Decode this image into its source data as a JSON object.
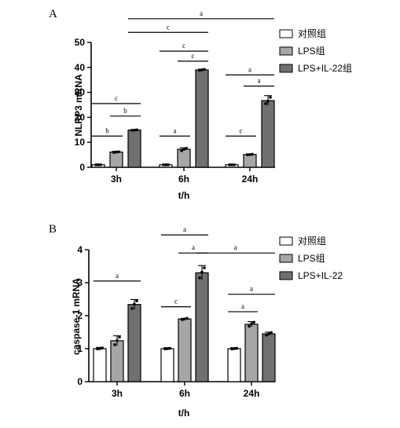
{
  "colors": {
    "control": "#ffffff",
    "lps": "#a6a6a6",
    "lps_il22": "#707070",
    "axis": "#000000"
  },
  "chart_data": [
    {
      "panel_label": "A",
      "type": "bar",
      "categories": [
        "3h",
        "6h",
        "24h"
      ],
      "xlabel": "t/h",
      "ylabel": "NLRP3 mRNA",
      "ylim": [
        0,
        50
      ],
      "yticks": [
        0,
        10,
        20,
        30,
        40,
        50
      ],
      "grid": false,
      "legend": "top-right",
      "series": [
        {
          "name": "对照组",
          "values": [
            1.0,
            1.0,
            1.0
          ],
          "errors": [
            0.1,
            0.1,
            0.1
          ],
          "points": [
            [
              1.0,
              1.0,
              1.0
            ],
            [
              1.0,
              1.0,
              1.0
            ],
            [
              1.0,
              1.0,
              1.0
            ]
          ]
        },
        {
          "name": "LPS组",
          "values": [
            6.1,
            7.2,
            5.1
          ],
          "errors": [
            0.3,
            0.6,
            0.2
          ],
          "points": [
            [
              5.9,
              6.1,
              6.2
            ],
            [
              6.6,
              7.2,
              7.6
            ],
            [
              5.0,
              5.1,
              5.2
            ]
          ]
        },
        {
          "name": "LPS+IL-22组",
          "values": [
            14.9,
            39.0,
            26.7
          ],
          "errors": [
            0.2,
            0.3,
            2.0
          ],
          "points": [
            [
              14.8,
              14.9,
              15.0
            ],
            [
              38.8,
              39.0,
              39.2
            ],
            [
              25.5,
              26.5,
              28.0
            ]
          ]
        }
      ],
      "significance": [
        {
          "label": "b",
          "cat_from": 0,
          "ser_from": 0,
          "cat_to": 0,
          "ser_to": 1,
          "y": 12.5
        },
        {
          "label": "b",
          "cat_from": 0,
          "ser_from": 1,
          "cat_to": 0,
          "ser_to": 2,
          "y": 20.5
        },
        {
          "label": "c",
          "cat_from": 0,
          "ser_from": 0,
          "cat_to": 0,
          "ser_to": 2,
          "y": 25.5
        },
        {
          "label": "a",
          "cat_from": 1,
          "ser_from": 0,
          "cat_to": 1,
          "ser_to": 1,
          "y": 12.5
        },
        {
          "label": "c",
          "cat_from": 1,
          "ser_from": 1,
          "cat_to": 1,
          "ser_to": 2,
          "y": 42.5
        },
        {
          "label": "c",
          "cat_from": 1,
          "ser_from": 0,
          "cat_to": 1,
          "ser_to": 2,
          "y": 46.5
        },
        {
          "label": "c",
          "cat_from": 0,
          "ser_from": 2,
          "cat_to": 1,
          "ser_to": 2,
          "y": 54.0
        },
        {
          "label": "a",
          "cat_from": 0,
          "ser_from": 2,
          "cat_to": 2,
          "ser_to": 2,
          "y": 59.5
        },
        {
          "label": "c",
          "cat_from": 2,
          "ser_from": 0,
          "cat_to": 2,
          "ser_to": 1,
          "y": 12.5
        },
        {
          "label": "a",
          "cat_from": 2,
          "ser_from": 1,
          "cat_to": 2,
          "ser_to": 2,
          "y": 32.5
        },
        {
          "label": "a",
          "cat_from": 2,
          "ser_from": 0,
          "cat_to": 2,
          "ser_to": 2,
          "y": 37.0
        }
      ]
    },
    {
      "panel_label": "B",
      "type": "bar",
      "categories": [
        "3h",
        "6h",
        "24h"
      ],
      "xlabel": "t/h",
      "ylabel": "caspase-1 mRNA",
      "ylim": [
        0,
        4
      ],
      "yticks": [
        0,
        1,
        2,
        3,
        4
      ],
      "grid": false,
      "legend": "top-right",
      "series": [
        {
          "name": "对照组",
          "values": [
            1.0,
            1.0,
            1.0
          ],
          "errors": [
            0.04,
            0.03,
            0.03
          ],
          "points": [
            [
              0.99,
              1.0,
              1.02
            ],
            [
              0.99,
              1.0,
              1.01
            ],
            [
              0.99,
              1.0,
              1.01
            ]
          ]
        },
        {
          "name": "LPS组",
          "values": [
            1.24,
            1.9,
            1.74
          ],
          "errors": [
            0.15,
            0.02,
            0.08
          ],
          "points": [
            [
              1.12,
              1.25,
              1.35
            ],
            [
              1.88,
              1.9,
              1.92
            ],
            [
              1.68,
              1.75,
              1.8
            ]
          ]
        },
        {
          "name": "LPS+IL-22",
          "values": [
            2.34,
            3.3,
            1.45
          ],
          "errors": [
            0.15,
            0.22,
            0.05
          ],
          "points": [
            [
              2.22,
              2.35,
              2.45
            ],
            [
              3.15,
              3.32,
              3.45
            ],
            [
              1.41,
              1.45,
              1.49
            ]
          ]
        }
      ],
      "significance": [
        {
          "label": "a",
          "cat_from": 0,
          "ser_from": 0,
          "cat_to": 0,
          "ser_to": 2,
          "y": 3.05
        },
        {
          "label": "c",
          "cat_from": 1,
          "ser_from": 0,
          "cat_to": 1,
          "ser_to": 1,
          "y": 2.27
        },
        {
          "label": "a",
          "cat_from": 1,
          "ser_from": 1,
          "cat_to": 1,
          "ser_to": 2,
          "y": 3.9
        },
        {
          "label": "a",
          "cat_from": 1,
          "ser_from": 0,
          "cat_to": 1,
          "ser_to": 2,
          "y": 4.45
        },
        {
          "label": "a",
          "cat_from": 1,
          "ser_from": 2,
          "cat_to": 2,
          "ser_to": 2,
          "y": 3.9
        },
        {
          "label": "a",
          "cat_from": 2,
          "ser_from": 0,
          "cat_to": 2,
          "ser_to": 1,
          "y": 2.12
        },
        {
          "label": "a",
          "cat_from": 2,
          "ser_from": 0,
          "cat_to": 2,
          "ser_to": 2,
          "y": 2.65
        }
      ]
    }
  ]
}
